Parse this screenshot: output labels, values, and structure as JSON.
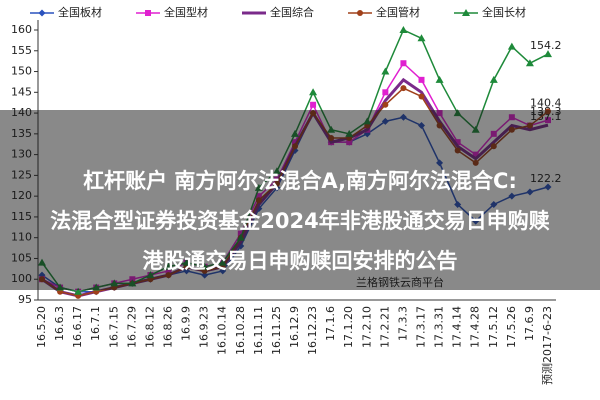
{
  "chart_data": {
    "type": "line",
    "categories": [
      "16.5.20",
      "16.6.3",
      "16.6.17",
      "16.7.1",
      "16.7.15",
      "16.7.29",
      "16.8.12",
      "16.8.26",
      "16.9.9",
      "16.9.23",
      "16.10.14",
      "16.10.28",
      "16.11.11",
      "16.11.25",
      "16.12.9",
      "16.12.23",
      "17.1.6",
      "17.1.20",
      "17.2.10",
      "17.2.21",
      "17.3.3",
      "17.3.17",
      "17.3.31",
      "17.4.14",
      "17.4.28",
      "17.5.12",
      "17.5.26",
      "17.6.9",
      "预测2017-6-23"
    ],
    "series": [
      {
        "name": "全国板材",
        "color": "#2a52be",
        "marker": "diamond",
        "values": [
          101,
          98,
          97,
          97,
          98,
          99,
          100,
          101,
          102,
          101,
          102,
          108,
          117,
          122,
          131,
          140,
          133,
          133,
          135,
          138,
          139,
          137,
          128,
          118,
          114,
          118,
          120,
          121,
          122.2
        ]
      },
      {
        "name": "全国型材",
        "color": "#e020d0",
        "marker": "square",
        "values": [
          100,
          98,
          97,
          98,
          99,
          100,
          101,
          102,
          104,
          103,
          104,
          111,
          120,
          124,
          133,
          142,
          133,
          133,
          136,
          145,
          152,
          148,
          140,
          133,
          130,
          135,
          139,
          137,
          138.3
        ]
      },
      {
        "name": "全国综合",
        "color": "#7a2a8a",
        "marker": "none",
        "values": [
          100,
          97,
          96,
          97,
          98,
          99,
          100,
          101,
          103,
          102,
          103,
          109,
          118,
          123,
          132,
          140,
          133,
          134,
          136,
          143,
          148,
          145,
          138,
          132,
          129,
          133,
          137,
          136,
          137.1
        ]
      },
      {
        "name": "全国管材",
        "color": "#a0401a",
        "marker": "circle",
        "values": [
          100,
          97,
          96,
          97,
          98,
          99,
          100,
          101,
          103,
          102,
          103,
          110,
          119,
          123,
          132,
          140,
          134,
          134,
          137,
          142,
          146,
          144,
          137,
          131,
          128,
          132,
          136,
          137,
          140.4
        ]
      },
      {
        "name": "全国长材",
        "color": "#1e8a3a",
        "marker": "triangle",
        "values": [
          104,
          98,
          97,
          98,
          99,
          99,
          101,
          103,
          104,
          103,
          104,
          110,
          122,
          126,
          135,
          145,
          136,
          135,
          138,
          150,
          160,
          158,
          148,
          140,
          136,
          148,
          156,
          152,
          154.2
        ]
      }
    ],
    "ylim": [
      95,
      160
    ],
    "yticks": [
      95,
      100,
      105,
      110,
      115,
      120,
      125,
      130,
      135,
      140,
      145,
      150,
      155,
      160
    ],
    "watermark": "兰格钢铁云商平台",
    "banner": [
      "杠杆账户 南方阿尔法混合A,南方阿尔法混合C:",
      "法混合型证券投资基金2024年非港股通交易日申购赎",
      "港股通交易日申购赎回安排的公告"
    ]
  }
}
